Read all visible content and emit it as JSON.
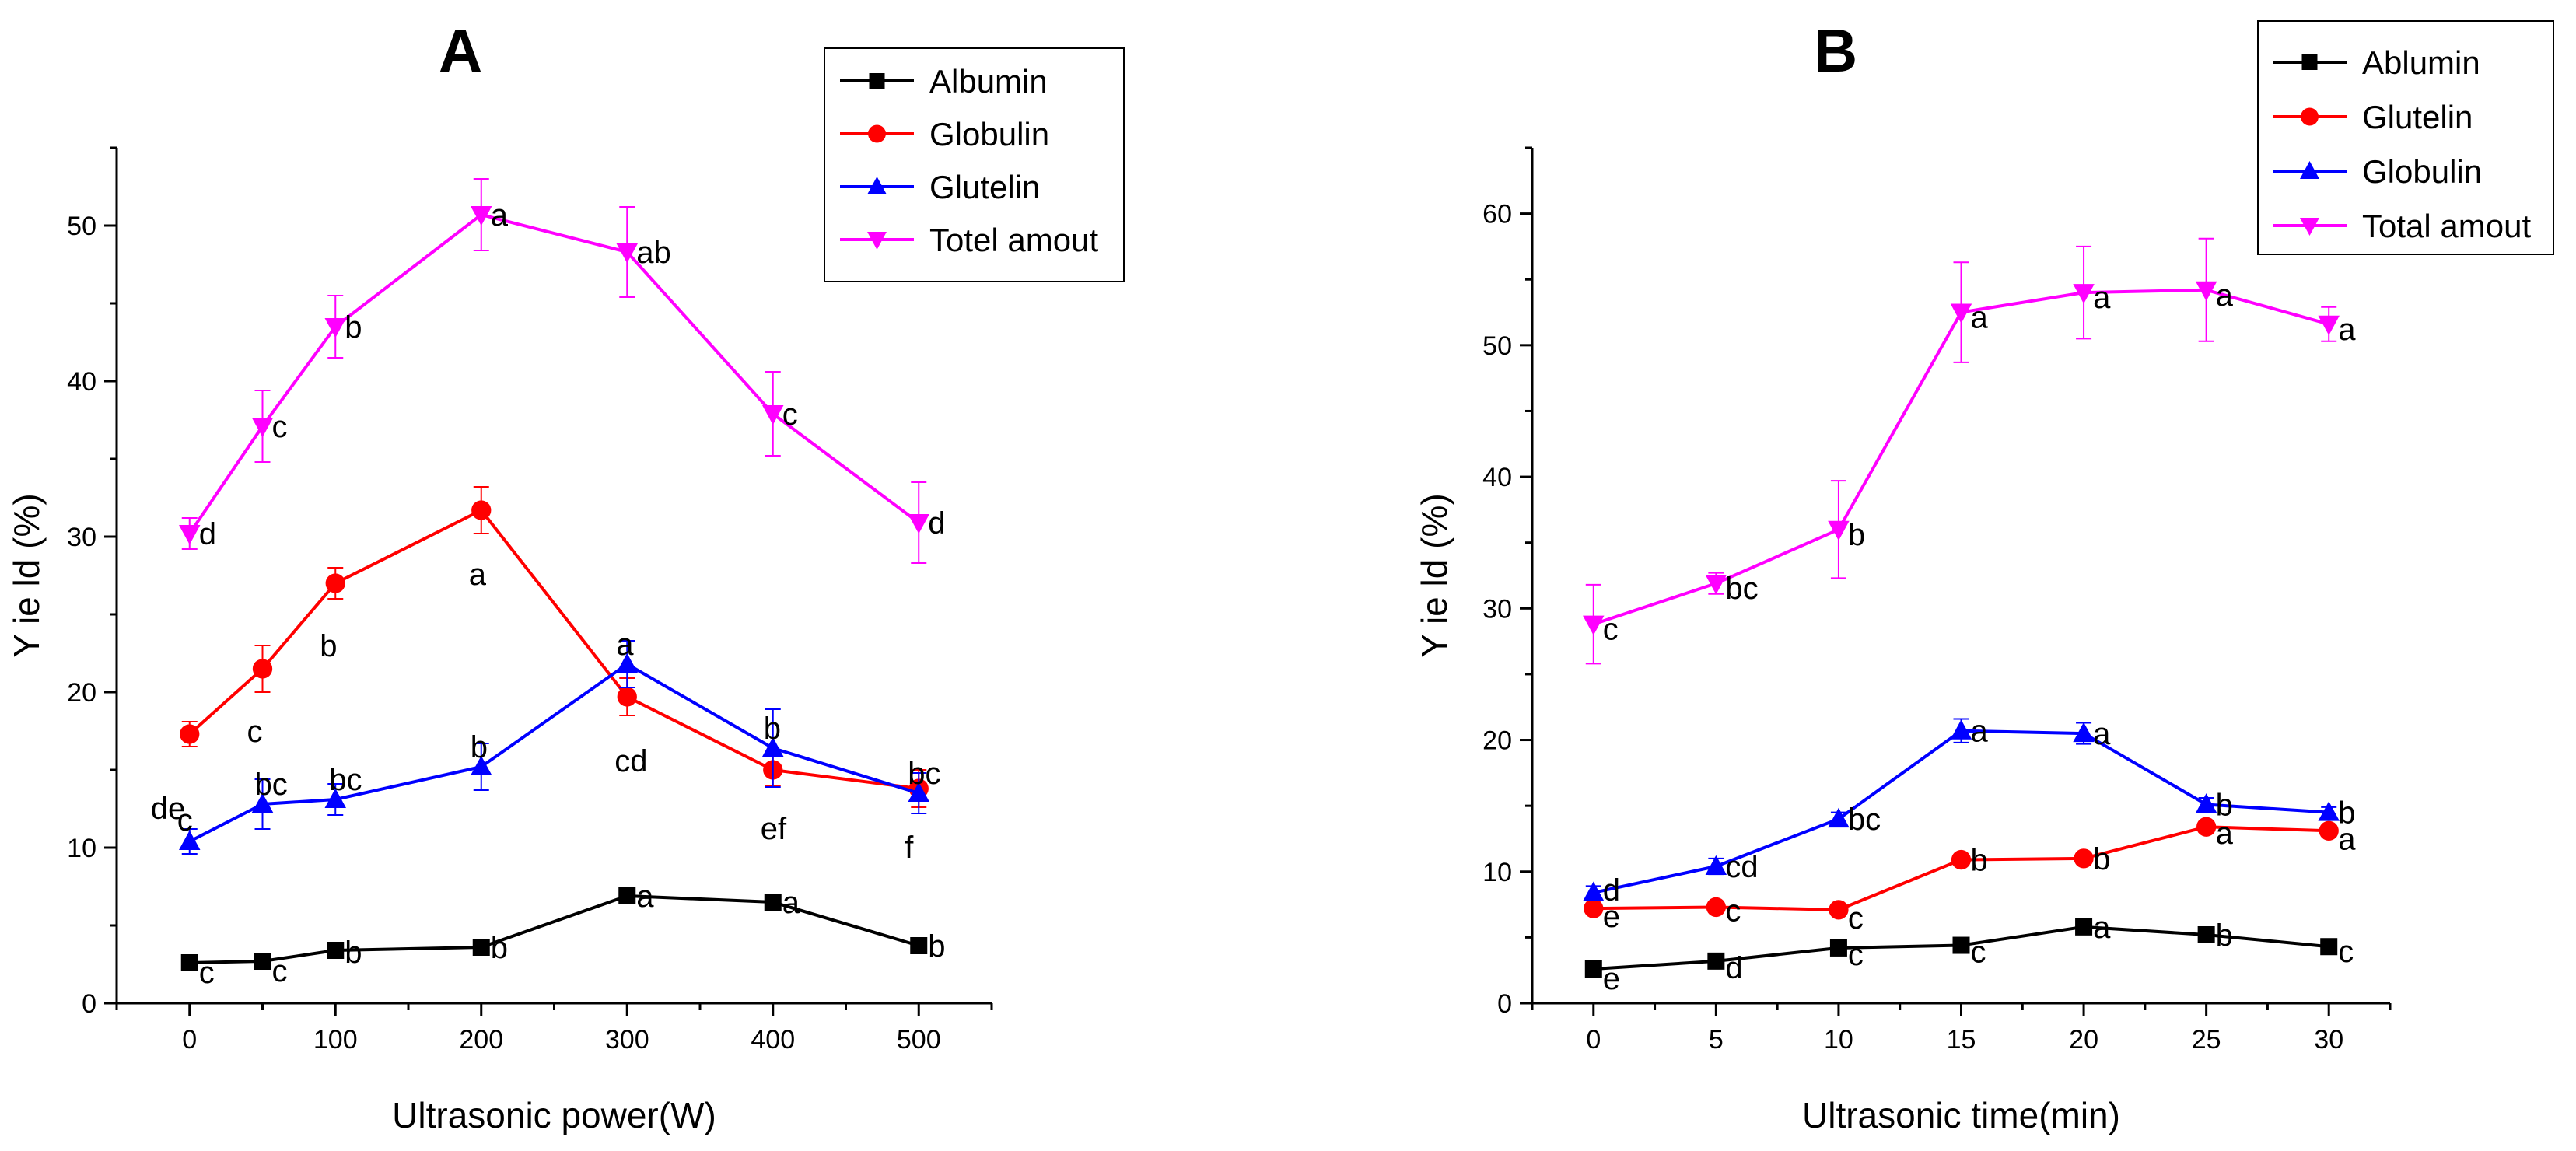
{
  "chart_data": [
    {
      "panel_label": "A",
      "type": "line",
      "xlabel": "Ultrasonic power(W)",
      "ylabel": "Y ie ld (%)",
      "x": [
        0,
        50,
        100,
        200,
        300,
        400,
        500
      ],
      "x_tick_labels": [
        "0",
        "100",
        "200",
        "300",
        "400",
        "500"
      ],
      "y_ticks": [
        0,
        10,
        20,
        30,
        40,
        50
      ],
      "xlim": [
        -50,
        550
      ],
      "ylim": [
        0,
        55
      ],
      "legend_position": "top-right",
      "series": [
        {
          "name": "Albumin",
          "color": "#000000",
          "marker": "square",
          "values": [
            2.6,
            2.7,
            3.4,
            3.6,
            6.9,
            6.5,
            3.7
          ],
          "errors": [
            0.4,
            0.3,
            0.4,
            0.4,
            0.5,
            0.4,
            0.4
          ],
          "labels": [
            "c",
            "c",
            "b",
            "b",
            "a",
            "a",
            "b"
          ]
        },
        {
          "name": "Globulin",
          "color": "#ff0000",
          "marker": "circle",
          "values": [
            17.3,
            21.5,
            27.0,
            31.7,
            19.7,
            15.0,
            13.8
          ],
          "errors": [
            0.8,
            1.5,
            1.0,
            1.5,
            1.2,
            1.0,
            1.2
          ],
          "labels": [
            "de",
            "c",
            "b",
            "a",
            "cd",
            "ef",
            "f"
          ]
        },
        {
          "name": "Glutelin",
          "color": "#0000ff",
          "marker": "triangle-up",
          "values": [
            10.4,
            12.8,
            13.1,
            15.2,
            21.8,
            16.4,
            13.5
          ],
          "errors": [
            0.8,
            1.6,
            1.0,
            1.5,
            1.5,
            2.5,
            1.3
          ],
          "labels": [
            "c",
            "bc",
            "bc",
            "b",
            "a",
            "b",
            "bc"
          ]
        },
        {
          "name": "Totel amout",
          "color": "#ff00ff",
          "marker": "triangle-down",
          "values": [
            30.2,
            37.1,
            43.5,
            50.7,
            48.3,
            37.9,
            30.9
          ],
          "errors": [
            1.0,
            2.3,
            2.0,
            2.3,
            2.9,
            2.7,
            2.6
          ],
          "labels": [
            "d",
            "c",
            "b",
            "a",
            "ab",
            "c",
            "d"
          ]
        }
      ]
    },
    {
      "panel_label": "B",
      "type": "line",
      "xlabel": "Ultrasonic time(min)",
      "ylabel": "Y ie ld (%)",
      "x": [
        0,
        5,
        10,
        15,
        20,
        25,
        30
      ],
      "x_tick_labels": [
        "0",
        "5",
        "10",
        "15",
        "20",
        "25",
        "30"
      ],
      "y_ticks": [
        0,
        10,
        20,
        30,
        40,
        50,
        60
      ],
      "xlim": [
        -2.5,
        32.5
      ],
      "ylim": [
        0,
        65
      ],
      "legend_position": "top-right",
      "series": [
        {
          "name": "Ablumin",
          "color": "#000000",
          "marker": "square",
          "values": [
            2.6,
            3.2,
            4.2,
            4.4,
            5.8,
            5.2,
            4.3
          ],
          "errors": [
            0.3,
            0.3,
            0.3,
            0.3,
            0.4,
            0.3,
            0.3
          ],
          "labels": [
            "e",
            "d",
            "c",
            "c",
            "a",
            "b",
            "c"
          ]
        },
        {
          "name": "Glutelin",
          "color": "#ff0000",
          "marker": "circle",
          "values": [
            7.2,
            7.3,
            7.1,
            10.9,
            11.0,
            13.4,
            13.1
          ],
          "errors": [
            0.3,
            0.3,
            0.3,
            0.4,
            0.4,
            0.4,
            0.4
          ],
          "labels": [
            "e",
            "c",
            "c",
            "b",
            "b",
            "a",
            "a"
          ]
        },
        {
          "name": "Globulin",
          "color": "#0000ff",
          "marker": "triangle-up",
          "values": [
            8.4,
            10.4,
            14.0,
            20.7,
            20.5,
            15.1,
            14.5
          ],
          "errors": [
            0.5,
            0.6,
            0.5,
            0.9,
            0.8,
            0.5,
            0.4
          ],
          "labels": [
            "d",
            "cd",
            "bc",
            "a",
            "a",
            "b",
            "b"
          ]
        },
        {
          "name": "Total amout",
          "color": "#ff00ff",
          "marker": "triangle-down",
          "values": [
            28.8,
            31.9,
            36.0,
            52.5,
            54.0,
            54.2,
            51.6
          ],
          "errors": [
            3.0,
            0.8,
            3.7,
            3.8,
            3.5,
            3.9,
            1.3
          ],
          "labels": [
            "c",
            "bc",
            "b",
            "a",
            "a",
            "a",
            "a"
          ]
        }
      ]
    }
  ]
}
